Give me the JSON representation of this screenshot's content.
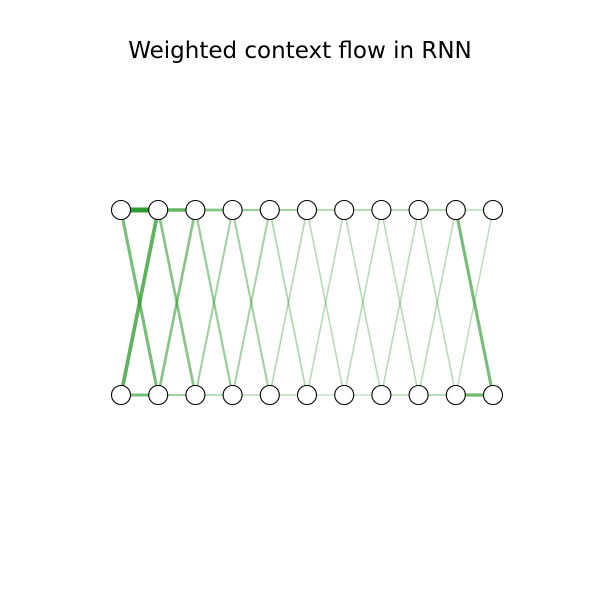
{
  "title": "Weighted context flow in RNN",
  "colors": {
    "edge": "#2e9b2e",
    "node_fill": "#ffffff",
    "node_stroke": "#000000",
    "background": "#ffffff"
  },
  "graph": {
    "top_row": {
      "node_count": 11
    },
    "bottom_row": {
      "node_count": 11
    },
    "edges": [
      {
        "from": "top",
        "i": 0,
        "to": "top",
        "j": 1,
        "weight": 1.0
      },
      {
        "from": "top",
        "i": 1,
        "to": "top",
        "j": 2,
        "weight": 0.65
      },
      {
        "from": "top",
        "i": 2,
        "to": "top",
        "j": 3,
        "weight": 0.45
      },
      {
        "from": "top",
        "i": 3,
        "to": "top",
        "j": 4,
        "weight": 0.35
      },
      {
        "from": "top",
        "i": 4,
        "to": "top",
        "j": 5,
        "weight": 0.28
      },
      {
        "from": "top",
        "i": 5,
        "to": "top",
        "j": 6,
        "weight": 0.24
      },
      {
        "from": "top",
        "i": 6,
        "to": "top",
        "j": 7,
        "weight": 0.22
      },
      {
        "from": "top",
        "i": 7,
        "to": "top",
        "j": 8,
        "weight": 0.22
      },
      {
        "from": "top",
        "i": 8,
        "to": "top",
        "j": 9,
        "weight": 0.22
      },
      {
        "from": "top",
        "i": 9,
        "to": "top",
        "j": 10,
        "weight": 0.15
      },
      {
        "from": "bottom",
        "i": 0,
        "to": "bottom",
        "j": 1,
        "weight": 0.55
      },
      {
        "from": "bottom",
        "i": 1,
        "to": "bottom",
        "j": 2,
        "weight": 0.3
      },
      {
        "from": "bottom",
        "i": 2,
        "to": "bottom",
        "j": 3,
        "weight": 0.2
      },
      {
        "from": "bottom",
        "i": 3,
        "to": "bottom",
        "j": 4,
        "weight": 0.16
      },
      {
        "from": "bottom",
        "i": 4,
        "to": "bottom",
        "j": 5,
        "weight": 0.14
      },
      {
        "from": "bottom",
        "i": 5,
        "to": "bottom",
        "j": 6,
        "weight": 0.13
      },
      {
        "from": "bottom",
        "i": 6,
        "to": "bottom",
        "j": 7,
        "weight": 0.13
      },
      {
        "from": "bottom",
        "i": 7,
        "to": "bottom",
        "j": 8,
        "weight": 0.14
      },
      {
        "from": "bottom",
        "i": 8,
        "to": "bottom",
        "j": 9,
        "weight": 0.2
      },
      {
        "from": "bottom",
        "i": 9,
        "to": "bottom",
        "j": 10,
        "weight": 0.6
      },
      {
        "from": "top",
        "i": 0,
        "to": "bottom",
        "j": 1,
        "weight": 0.55
      },
      {
        "from": "top",
        "i": 1,
        "to": "bottom",
        "j": 0,
        "weight": 0.7
      },
      {
        "from": "top",
        "i": 1,
        "to": "bottom",
        "j": 2,
        "weight": 0.45
      },
      {
        "from": "top",
        "i": 2,
        "to": "bottom",
        "j": 1,
        "weight": 0.45
      },
      {
        "from": "top",
        "i": 2,
        "to": "bottom",
        "j": 3,
        "weight": 0.35
      },
      {
        "from": "top",
        "i": 3,
        "to": "bottom",
        "j": 2,
        "weight": 0.3
      },
      {
        "from": "top",
        "i": 3,
        "to": "bottom",
        "j": 4,
        "weight": 0.3
      },
      {
        "from": "top",
        "i": 4,
        "to": "bottom",
        "j": 3,
        "weight": 0.28
      },
      {
        "from": "top",
        "i": 4,
        "to": "bottom",
        "j": 5,
        "weight": 0.22
      },
      {
        "from": "top",
        "i": 5,
        "to": "bottom",
        "j": 4,
        "weight": 0.2
      },
      {
        "from": "top",
        "i": 5,
        "to": "bottom",
        "j": 6,
        "weight": 0.18
      },
      {
        "from": "top",
        "i": 6,
        "to": "bottom",
        "j": 5,
        "weight": 0.18
      },
      {
        "from": "top",
        "i": 6,
        "to": "bottom",
        "j": 7,
        "weight": 0.18
      },
      {
        "from": "top",
        "i": 7,
        "to": "bottom",
        "j": 6,
        "weight": 0.18
      },
      {
        "from": "top",
        "i": 7,
        "to": "bottom",
        "j": 8,
        "weight": 0.18
      },
      {
        "from": "top",
        "i": 8,
        "to": "bottom",
        "j": 7,
        "weight": 0.18
      },
      {
        "from": "top",
        "i": 8,
        "to": "bottom",
        "j": 9,
        "weight": 0.18
      },
      {
        "from": "top",
        "i": 9,
        "to": "bottom",
        "j": 8,
        "weight": 0.18
      },
      {
        "from": "top",
        "i": 9,
        "to": "bottom",
        "j": 10,
        "weight": 0.55
      },
      {
        "from": "top",
        "i": 10,
        "to": "bottom",
        "j": 9,
        "weight": 0.15
      }
    ]
  }
}
